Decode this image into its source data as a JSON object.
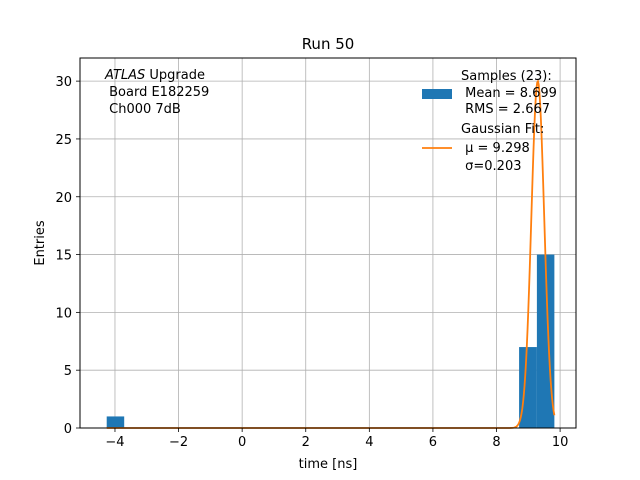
{
  "chart_data": {
    "type": "bar",
    "title": "Run 50",
    "xlabel": "time [ns]",
    "ylabel": "Entries",
    "xlim": [
      -5.1,
      10.5
    ],
    "ylim": [
      0,
      32
    ],
    "xticks": [
      -4,
      -2,
      0,
      2,
      4,
      6,
      8,
      10
    ],
    "yticks": [
      0,
      5,
      10,
      15,
      20,
      25,
      30
    ],
    "grid": true,
    "annotation": {
      "atlas": "ATLAS",
      "line1_rest": " Upgrade",
      "line2": " Board E182259",
      "line3": " Ch000 7dB"
    },
    "histogram": {
      "name": "Samples (23):",
      "color": "#1f77b4",
      "bins": [
        {
          "x0": -4.26,
          "x1": -3.71,
          "count": 1
        },
        {
          "x0": 8.71,
          "x1": 9.27,
          "count": 7
        },
        {
          "x0": 9.27,
          "x1": 9.82,
          "count": 15
        }
      ]
    },
    "gaussian_fit": {
      "name": "Gaussian Fit:",
      "color": "#ff7f0e",
      "mu": 9.298,
      "sigma": 0.203,
      "amplitude": 30.0,
      "x_range": [
        -4.26,
        9.82
      ]
    },
    "legend": {
      "placement": "top-right",
      "samples_label": "Samples (23):",
      "mean_label": " Mean = 8.699",
      "rms_label": " RMS = 2.667",
      "fit_label": "Gaussian Fit:",
      "mu_label": " μ = 9.298",
      "sigma_label": " σ=0.203"
    }
  }
}
